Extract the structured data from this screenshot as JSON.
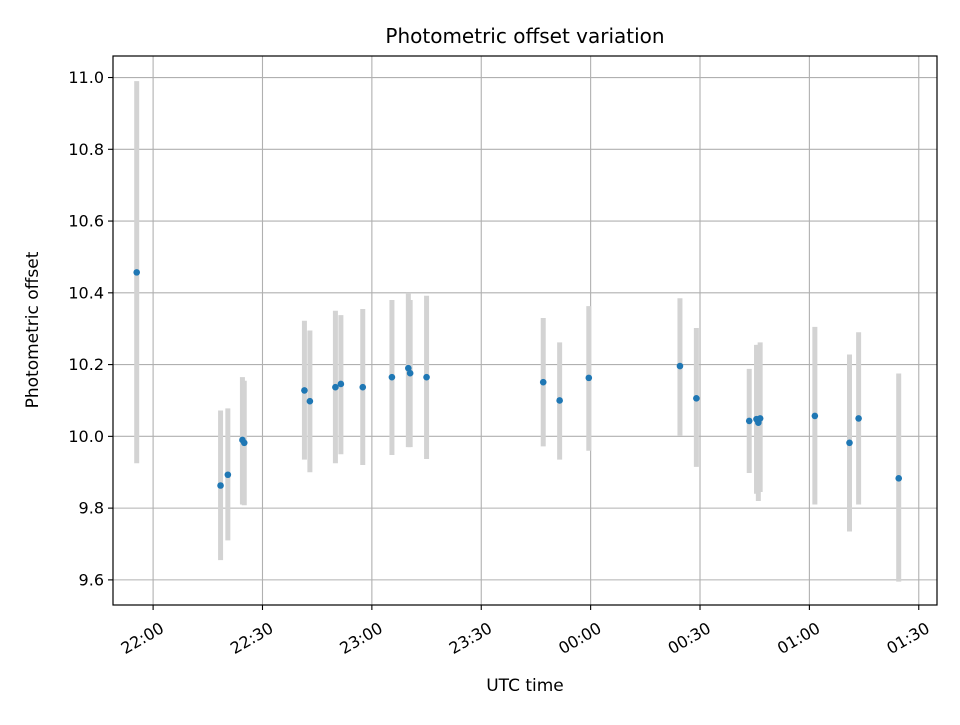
{
  "chart_data": {
    "type": "scatter",
    "title": "Photometric offset variation",
    "xlabel": "UTC time",
    "ylabel": "Photometric offset",
    "x_axis_format": "time HH:MM",
    "xlim": [
      "21:49",
      "01:35"
    ],
    "ylim": [
      9.53,
      11.06
    ],
    "x_ticks": [
      {
        "t": "22:00",
        "label": "22:00"
      },
      {
        "t": "22:30",
        "label": "22:30"
      },
      {
        "t": "23:00",
        "label": "23:00"
      },
      {
        "t": "23:30",
        "label": "23:30"
      },
      {
        "t": "00:00",
        "label": "00:00"
      },
      {
        "t": "00:30",
        "label": "00:30"
      },
      {
        "t": "01:00",
        "label": "01:00"
      },
      {
        "t": "01:30",
        "label": "01:30"
      }
    ],
    "y_ticks": [
      "9.6",
      "9.8",
      "10.0",
      "10.2",
      "10.4",
      "10.6",
      "10.8",
      "11.0"
    ],
    "grid": true,
    "colors": {
      "point": "#1f77b4",
      "errorbar": "#d3d3d3",
      "grid": "#b0b0b0"
    },
    "points": [
      {
        "t": "21:55:30",
        "y": 10.457,
        "lo": 9.925,
        "hi": 10.99
      },
      {
        "t": "22:18:30",
        "y": 9.863,
        "lo": 9.655,
        "hi": 10.072
      },
      {
        "t": "22:20:30",
        "y": 9.893,
        "lo": 9.71,
        "hi": 10.078
      },
      {
        "t": "22:24:30",
        "y": 9.99,
        "lo": 9.81,
        "hi": 10.165
      },
      {
        "t": "22:25:00",
        "y": 9.982,
        "lo": 9.808,
        "hi": 10.155
      },
      {
        "t": "22:41:30",
        "y": 10.128,
        "lo": 9.935,
        "hi": 10.322
      },
      {
        "t": "22:43:00",
        "y": 10.098,
        "lo": 9.9,
        "hi": 10.295
      },
      {
        "t": "22:50:00",
        "y": 10.137,
        "lo": 9.925,
        "hi": 10.35
      },
      {
        "t": "22:51:30",
        "y": 10.146,
        "lo": 9.95,
        "hi": 10.338
      },
      {
        "t": "22:57:30",
        "y": 10.137,
        "lo": 9.92,
        "hi": 10.355
      },
      {
        "t": "23:05:30",
        "y": 10.165,
        "lo": 9.948,
        "hi": 10.38
      },
      {
        "t": "23:10:00",
        "y": 10.19,
        "lo": 9.97,
        "hi": 10.4
      },
      {
        "t": "23:10:30",
        "y": 10.176,
        "lo": 9.97,
        "hi": 10.38
      },
      {
        "t": "23:15:00",
        "y": 10.165,
        "lo": 9.937,
        "hi": 10.392
      },
      {
        "t": "23:47:00",
        "y": 10.151,
        "lo": 9.972,
        "hi": 10.33
      },
      {
        "t": "23:51:30",
        "y": 10.1,
        "lo": 9.935,
        "hi": 10.262
      },
      {
        "t": "23:59:30",
        "y": 10.163,
        "lo": 9.96,
        "hi": 10.363
      },
      {
        "t": "00:24:30",
        "y": 10.196,
        "lo": 10.002,
        "hi": 10.385
      },
      {
        "t": "00:29:00",
        "y": 10.106,
        "lo": 9.915,
        "hi": 10.302
      },
      {
        "t": "00:43:30",
        "y": 10.043,
        "lo": 9.898,
        "hi": 10.188
      },
      {
        "t": "00:45:30",
        "y": 10.048,
        "lo": 9.84,
        "hi": 10.255
      },
      {
        "t": "00:46:00",
        "y": 10.038,
        "lo": 9.82,
        "hi": 10.255
      },
      {
        "t": "00:46:30",
        "y": 10.05,
        "lo": 9.845,
        "hi": 10.262
      },
      {
        "t": "01:01:30",
        "y": 10.057,
        "lo": 9.81,
        "hi": 10.305
      },
      {
        "t": "01:11:00",
        "y": 9.982,
        "lo": 9.735,
        "hi": 10.228
      },
      {
        "t": "01:13:30",
        "y": 10.05,
        "lo": 9.81,
        "hi": 10.29
      },
      {
        "t": "01:24:30",
        "y": 9.883,
        "lo": 9.595,
        "hi": 10.175
      }
    ]
  }
}
